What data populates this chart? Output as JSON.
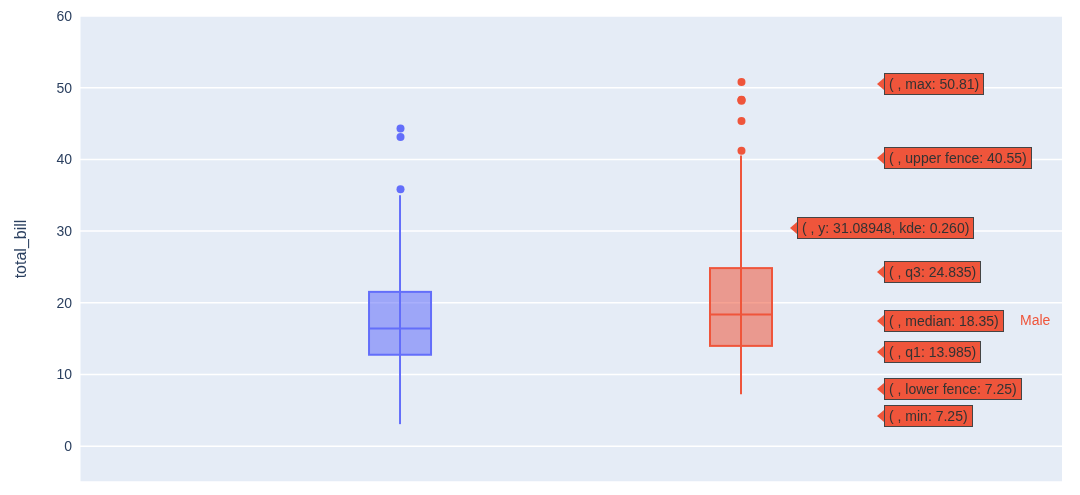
{
  "chart_data": {
    "type": "box",
    "ylabel": "total_bill",
    "categories": [
      null,
      null
    ],
    "tick_labels": "y",
    "grid": "y",
    "ylim": [
      -5,
      60
    ],
    "yticks": [
      0,
      10,
      20,
      30,
      40,
      50,
      60
    ],
    "series": [
      {
        "color": "#636efa",
        "boxes": [
          {
            "low": 3.07,
            "q1": 12.75,
            "median": 16.4,
            "q3": 21.52,
            "high": 35,
            "outliers": [
              35.83,
              43.11,
              44.3
            ]
          },
          null
        ]
      },
      {
        "name": "Male",
        "color": "#ef553b",
        "boxes": [
          null,
          {
            "low": 7.25,
            "q1": 13.985,
            "median": 18.35,
            "q3": 24.835,
            "high": 40.55,
            "outliers": [
              41.19,
              45.35,
              48.17,
              48.27,
              48.33,
              50.81
            ]
          }
        ]
      }
    ],
    "annotations": [
      "( , max: 50.81)",
      "( , upper fence: 40.55)",
      "( , y: 31.08948, kde: 0.260)",
      "( , q3: 24.835)",
      "( , median: 18.35)",
      "( , q1: 13.985)",
      "( , lower fence: 7.25)",
      "( , min: 7.25)"
    ]
  }
}
